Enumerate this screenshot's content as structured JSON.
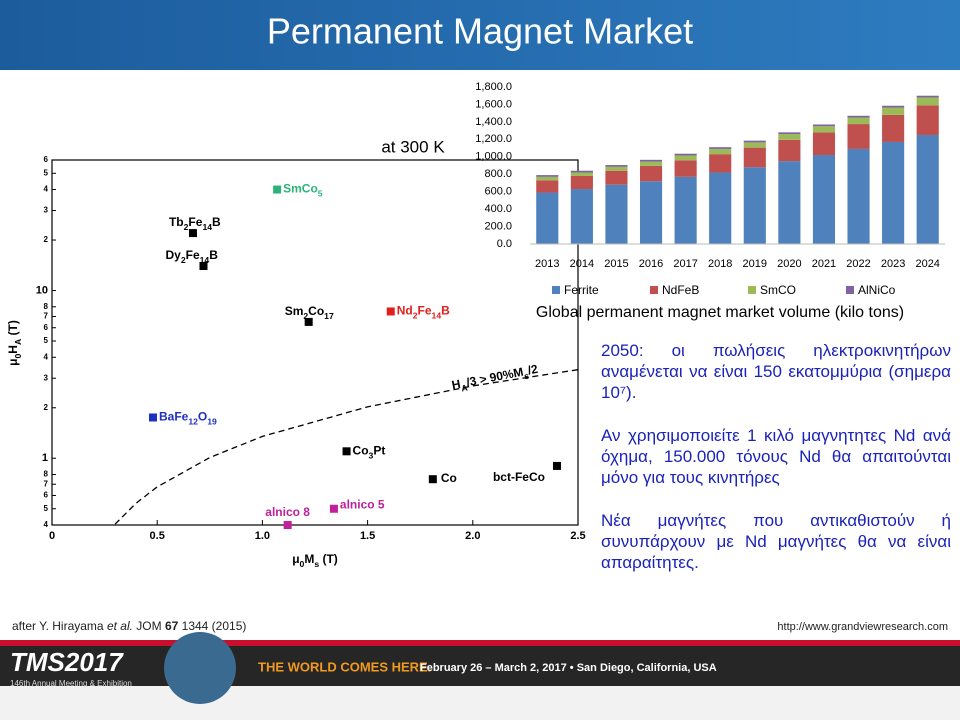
{
  "title": "Permanent Magnet Market",
  "chart_data": [
    {
      "type": "scatter",
      "annotation": "at 300 K",
      "x_label": [
        "μ",
        "0",
        "M",
        "s",
        " (T)"
      ],
      "y_label": [
        "μ",
        "0",
        "H",
        "A",
        " (T)"
      ],
      "xlim": [
        0,
        2.5
      ],
      "xticks": [
        0,
        0.5,
        {
          "value": 1,
          "label": "1.0"
        },
        1.5,
        {
          "value": 2,
          "label": "2.0"
        },
        2.5
      ],
      "ylim": [
        0.4,
        60
      ],
      "log_y": true,
      "yticks": [
        {
          "value": 60,
          "label": "6"
        },
        {
          "value": 50,
          "label": "5"
        },
        {
          "value": 40,
          "label": "4"
        },
        {
          "value": 30,
          "label": "3"
        },
        {
          "value": 20,
          "label": "2"
        },
        10,
        8,
        7,
        6,
        5,
        4,
        3,
        2,
        1,
        {
          "value": 0.8,
          "label": "8"
        },
        {
          "value": 0.7,
          "label": "7"
        },
        {
          "value": 0.6,
          "label": "6"
        },
        {
          "value": 0.5,
          "label": "5"
        },
        {
          "value": 0.4,
          "label": "4"
        }
      ],
      "points": [
        {
          "name": [
            "SmCo",
            "5"
          ],
          "x": 1.07,
          "y": 40,
          "color": "#2db37a"
        },
        {
          "name": [
            "Tb",
            "2",
            "Fe",
            "14",
            "B"
          ],
          "x": 0.67,
          "y": 22,
          "color": "#000000"
        },
        {
          "name": [
            "Dy",
            "2",
            "Fe",
            "14",
            "B"
          ],
          "x": 0.72,
          "y": 14,
          "color": "#000000"
        },
        {
          "name": [
            "Sm",
            "2",
            "Co",
            "17"
          ],
          "x": 1.22,
          "y": 6.5,
          "color": "#000000"
        },
        {
          "name": [
            "Nd",
            "2",
            "Fe",
            "14",
            "B"
          ],
          "x": 1.61,
          "y": 7.5,
          "color": "#e0201c"
        },
        {
          "name": [
            "BaFe",
            "12",
            "O",
            "19"
          ],
          "x": 0.48,
          "y": 1.75,
          "color": "#1f2fbf"
        },
        {
          "name": [
            "Co",
            "3",
            "Pt"
          ],
          "x": 1.4,
          "y": 1.1,
          "color": "#000000"
        },
        {
          "name": [
            "Co"
          ],
          "x": 1.81,
          "y": 0.75,
          "color": "#000000"
        },
        {
          "name": [
            "bct-FeCo"
          ],
          "x": 2.4,
          "y": 0.9,
          "color": "#000000"
        },
        {
          "name": [
            "alnico 8"
          ],
          "x": 1.12,
          "y": 0.4,
          "color": "#c0209a"
        },
        {
          "name": [
            "alnico 5"
          ],
          "x": 1.34,
          "y": 0.5,
          "color": "#c0209a"
        }
      ],
      "boundary": {
        "label": [
          "H",
          "A",
          "/3 > 90%M",
          "s",
          "/2"
        ],
        "x": [
          0.3,
          0.4,
          0.5,
          0.75,
          1,
          1.5,
          2,
          2.5
        ],
        "y": [
          0.405,
          0.54,
          0.675,
          1.01,
          1.35,
          2.025,
          2.7,
          3.375
        ]
      }
    },
    {
      "type": "bar",
      "stacked": true,
      "title": "Global permanent magnet market volume (kilo tons)",
      "categories": [
        "2013",
        "2014",
        "2015",
        "2016",
        "2017",
        "2018",
        "2019",
        "2020",
        "2021",
        "2022",
        "2023",
        "2024"
      ],
      "series": [
        {
          "name": "Ferrite",
          "color": "#4f81bd",
          "values": [
            590,
            630,
            680,
            720,
            770,
            820,
            880,
            950,
            1020,
            1090,
            1170,
            1250
          ]
        },
        {
          "name": "NdFeB",
          "color": "#c0504d",
          "values": [
            140,
            150,
            160,
            175,
            190,
            210,
            225,
            245,
            260,
            285,
            310,
            340
          ]
        },
        {
          "name": "SmCO",
          "color": "#9bbb59",
          "values": [
            40,
            40,
            45,
            50,
            55,
            60,
            60,
            65,
            70,
            75,
            85,
            90
          ]
        },
        {
          "name": "AlNiCo",
          "color": "#8064a2",
          "values": [
            20,
            20,
            20,
            20,
            20,
            20,
            20,
            20,
            20,
            20,
            20,
            20
          ]
        }
      ],
      "ylim": [
        0,
        1800
      ],
      "yticks": [
        {
          "value": 0,
          "label": "0.0"
        },
        {
          "value": 200,
          "label": "200.0"
        },
        {
          "value": 400,
          "label": "400.0"
        },
        {
          "value": 600,
          "label": "600.0"
        },
        {
          "value": 800,
          "label": "800.0"
        },
        {
          "value": 1000,
          "label": "1,000.0"
        },
        {
          "value": 1200,
          "label": "1,200.0"
        },
        {
          "value": 1400,
          "label": "1,400.0"
        },
        {
          "value": 1600,
          "label": "1,600.0"
        },
        {
          "value": 1800,
          "label": "1,800.0"
        }
      ],
      "legend": "bottom"
    }
  ],
  "notes": [
    "2050: οι πωλήσεις ηλεκτροκινητήρων αναμένεται να είναι 150 εκατομμύρια (σημερα 10⁷).",
    "Αν χρησιμοποιείτε 1 κιλό μαγνητητες Nd ανά όχημα, 150.000 τόνους Nd θα απαιτούνται μόνο για τους κινητήρες",
    "Νέα μαγνήτες που αντικαθιστούν ή συνυπάρχουν με Nd μαγνήτες θα να είναι απαραίτητες."
  ],
  "citation": [
    "after Y. Hirayama ",
    "et al.",
    " JOM ",
    "67",
    " 1344 (2015)"
  ],
  "source": "http://www.grandviewresearch.com",
  "footer": {
    "logo": "TMS2017",
    "meeting": "146th Annual Meeting & Exhibition",
    "slogan": "THE WORLD COMES HERE.",
    "dates": "February 26 – March 2, 2017 • San Diego, California, USA"
  }
}
